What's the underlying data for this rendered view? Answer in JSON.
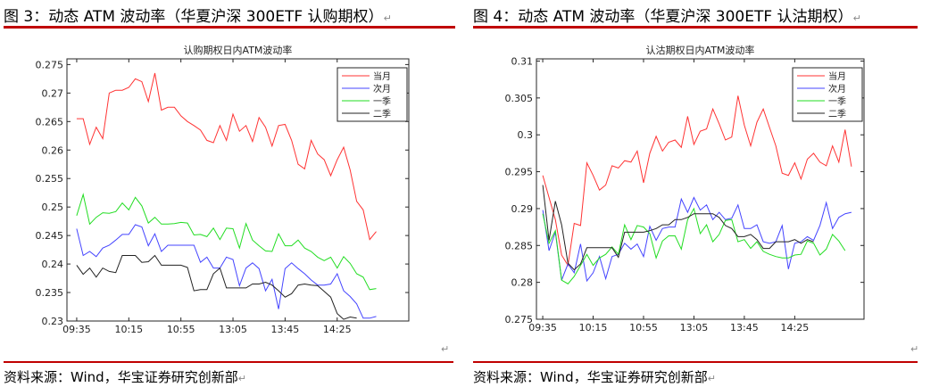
{
  "figures": [
    {
      "heading": "图 3：动态 ATM 波动率（华夏沪深 300ETF 认购期权）",
      "source": "资料来源：Wind，华宝证券研究创新部",
      "chart_data": {
        "type": "line",
        "title": "认购期权日内ATM波动率",
        "xlabel": "",
        "ylabel": "",
        "x_tick_labels": [
          "09:35",
          "10:15",
          "10:55",
          "13:05",
          "13:45",
          "14:25"
        ],
        "x_tick_index": [
          0,
          8,
          16,
          24,
          32,
          40
        ],
        "yticks": [
          0.23,
          0.235,
          0.24,
          0.245,
          0.25,
          0.255,
          0.26,
          0.265,
          0.27,
          0.275
        ],
        "ytick_labels": [
          "0.23",
          "0.235",
          "0.24",
          "0.245",
          "0.25",
          "0.255",
          "0.26",
          "0.265",
          "0.27",
          "0.275"
        ],
        "ylim": [
          0.23,
          0.276
        ],
        "xlim": [
          -1.5,
          51
        ],
        "grid": false,
        "legend_position": "top-right",
        "series": [
          {
            "name": "当月",
            "color": "#ff3333",
            "values": [
              0.2655,
              0.2655,
              0.261,
              0.264,
              0.262,
              0.27,
              0.2705,
              0.2705,
              0.271,
              0.2725,
              0.272,
              0.2685,
              0.2735,
              0.267,
              0.2675,
              0.2675,
              0.266,
              0.265,
              0.2643,
              0.2635,
              0.2617,
              0.2613,
              0.2643,
              0.2617,
              0.2663,
              0.2633,
              0.2643,
              0.2615,
              0.2657,
              0.264,
              0.2607,
              0.2643,
              0.2645,
              0.2617,
              0.2575,
              0.2567,
              0.2617,
              0.2593,
              0.2583,
              0.2555,
              0.2583,
              0.2605,
              0.2565,
              0.251,
              0.2495,
              0.2443,
              0.2457
            ]
          },
          {
            "name": "次月",
            "color": "#4444ff",
            "values": [
              0.2462,
              0.2415,
              0.2422,
              0.2413,
              0.2428,
              0.2433,
              0.2442,
              0.2452,
              0.2452,
              0.2469,
              0.2465,
              0.2432,
              0.2453,
              0.2422,
              0.2433,
              0.2433,
              0.2433,
              0.2433,
              0.2433,
              0.2403,
              0.2412,
              0.2393,
              0.2393,
              0.2412,
              0.2408,
              0.2362,
              0.2393,
              0.2402,
              0.2392,
              0.2353,
              0.2373,
              0.2321,
              0.2392,
              0.2402,
              0.2392,
              0.2383,
              0.2372,
              0.2363,
              0.2363,
              0.2365,
              0.2383,
              0.2353,
              0.2343,
              0.233,
              0.2305,
              0.2305,
              0.2308
            ]
          },
          {
            "name": "一季",
            "color": "#22dd22",
            "values": [
              0.2485,
              0.2522,
              0.247,
              0.2482,
              0.249,
              0.2489,
              0.2492,
              0.2507,
              0.2495,
              0.2517,
              0.2502,
              0.2472,
              0.2482,
              0.247,
              0.247,
              0.2471,
              0.2473,
              0.2472,
              0.2451,
              0.2452,
              0.2448,
              0.2463,
              0.2443,
              0.2463,
              0.2462,
              0.2428,
              0.2471,
              0.2442,
              0.2432,
              0.2423,
              0.2422,
              0.2453,
              0.2432,
              0.2432,
              0.2442,
              0.2428,
              0.2422,
              0.2412,
              0.2406,
              0.2412,
              0.2393,
              0.2413,
              0.2401,
              0.2383,
              0.2377,
              0.2355,
              0.2357
            ]
          },
          {
            "name": "二季",
            "color": "#222222",
            "values": [
              0.2398,
              0.2382,
              0.2393,
              0.2377,
              0.2393,
              0.2387,
              0.2385,
              0.2415,
              0.2415,
              0.2415,
              0.2403,
              0.2404,
              0.2415,
              0.2398,
              0.2398,
              0.2398,
              0.2398,
              0.2394,
              0.2353,
              0.2355,
              0.2355,
              0.2383,
              0.2393,
              0.2358,
              0.2358,
              0.2358,
              0.2358,
              0.2365,
              0.2365,
              0.2368,
              0.2363,
              0.2353,
              0.2342,
              0.2348,
              0.2363,
              0.2365,
              0.2363,
              0.2362,
              0.2352,
              0.2342,
              0.2313,
              0.2303,
              0.2307,
              0.2305
            ]
          }
        ]
      }
    },
    {
      "heading": "图 4：动态 ATM 波动率（华夏沪深 300ETF 认沽期权）",
      "source": "资料来源：Wind，华宝证券研究创新部",
      "chart_data": {
        "type": "line",
        "title": "认沽期权日内ATM波动率",
        "xlabel": "",
        "ylabel": "",
        "x_tick_labels": [
          "09:35",
          "10:15",
          "10:55",
          "13:05",
          "13:45",
          "14:25"
        ],
        "x_tick_index": [
          0,
          8,
          16,
          24,
          32,
          40
        ],
        "yticks": [
          0.275,
          0.28,
          0.285,
          0.29,
          0.295,
          0.3,
          0.305,
          0.31
        ],
        "ytick_labels": [
          "0.275",
          "0.28",
          "0.285",
          "0.29",
          "0.295",
          "0.3",
          "0.305",
          "0.31"
        ],
        "ylim": [
          0.275,
          0.3103
        ],
        "xlim": [
          -1,
          51
        ],
        "grid": false,
        "legend_position": "top-right",
        "series": [
          {
            "name": "当月",
            "color": "#ff3333",
            "values": [
              0.2945,
              0.2915,
              0.2885,
              0.2837,
              0.2823,
              0.288,
              0.2877,
              0.2962,
              0.2945,
              0.2925,
              0.2932,
              0.2958,
              0.2955,
              0.2965,
              0.2963,
              0.2978,
              0.2935,
              0.2975,
              0.2998,
              0.2978,
              0.299,
              0.2993,
              0.2983,
              0.3025,
              0.2987,
              0.3005,
              0.3008,
              0.3035,
              0.3015,
              0.2993,
              0.2997,
              0.3053,
              0.3013,
              0.2985,
              0.3017,
              0.3035,
              0.301,
              0.2985,
              0.2948,
              0.2945,
              0.2962,
              0.294,
              0.2967,
              0.2975,
              0.2963,
              0.2958,
              0.2985,
              0.2963,
              0.3007,
              0.2957
            ]
          },
          {
            "name": "次月",
            "color": "#4444ff",
            "values": [
              0.2898,
              0.2843,
              0.2868,
              0.2803,
              0.2825,
              0.2813,
              0.2852,
              0.2802,
              0.2813,
              0.2835,
              0.2805,
              0.2835,
              0.2838,
              0.2853,
              0.2845,
              0.2852,
              0.2835,
              0.2876,
              0.2857,
              0.2873,
              0.2875,
              0.2875,
              0.2913,
              0.2895,
              0.2915,
              0.2898,
              0.2905,
              0.2885,
              0.2895,
              0.2885,
              0.2887,
              0.2905,
              0.2873,
              0.2873,
              0.2878,
              0.2855,
              0.2853,
              0.2855,
              0.2877,
              0.2818,
              0.2853,
              0.2855,
              0.2862,
              0.2857,
              0.2877,
              0.2908,
              0.2873,
              0.2888,
              0.2893,
              0.2895
            ]
          },
          {
            "name": "一季",
            "color": "#22dd22",
            "values": [
              0.2893,
              0.2853,
              0.287,
              0.2803,
              0.2798,
              0.2808,
              0.2823,
              0.2838,
              0.2823,
              0.2833,
              0.2838,
              0.2848,
              0.2838,
              0.2878,
              0.2858,
              0.2877,
              0.2875,
              0.2866,
              0.2833,
              0.2856,
              0.2863,
              0.2863,
              0.2845,
              0.2885,
              0.29,
              0.2866,
              0.2878,
              0.2855,
              0.2865,
              0.2884,
              0.2885,
              0.2855,
              0.2858,
              0.2846,
              0.2855,
              0.2842,
              0.2838,
              0.2835,
              0.2833,
              0.2833,
              0.2837,
              0.2838,
              0.2856,
              0.2853,
              0.2837,
              0.2845,
              0.2865,
              0.2856,
              0.2843
            ]
          },
          {
            "name": "二季",
            "color": "#222222",
            "values": [
              0.2932,
              0.2857,
              0.291,
              0.2878,
              0.2826,
              0.2817,
              0.2825,
              0.2847,
              0.2847,
              0.2847,
              0.2847,
              0.2847,
              0.2834,
              0.2868,
              0.2868,
              0.2868,
              0.2868,
              0.287,
              0.2873,
              0.2878,
              0.2878,
              0.2885,
              0.2885,
              0.2888,
              0.2893,
              0.2893,
              0.2893,
              0.2893,
              0.2888,
              0.2877,
              0.2873,
              0.2862,
              0.2862,
              0.2865,
              0.2858,
              0.2846,
              0.2846,
              0.2855,
              0.2855,
              0.2855,
              0.2858,
              0.2853,
              0.2858,
              0.2855
            ]
          }
        ]
      }
    }
  ]
}
